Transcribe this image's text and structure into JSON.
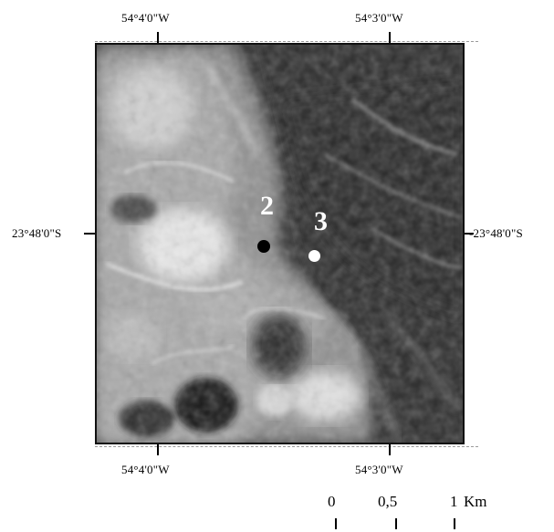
{
  "map": {
    "top_axis": {
      "left_label": "54°4'0\"W",
      "right_label": "54°3'0\"W"
    },
    "bottom_axis": {
      "left_label": "54°4'0\"W",
      "right_label": "54°3'0\"W"
    },
    "left_axis": {
      "label": "23°48'0\"S"
    },
    "right_axis": {
      "label": "-23°48'0\"S"
    },
    "points": [
      {
        "label": "2",
        "color": "#000000"
      },
      {
        "label": "3",
        "color": "#ffffff"
      }
    ]
  },
  "scale_bar": {
    "ticks": [
      "0",
      "0,5",
      "1"
    ],
    "unit": "Km"
  }
}
